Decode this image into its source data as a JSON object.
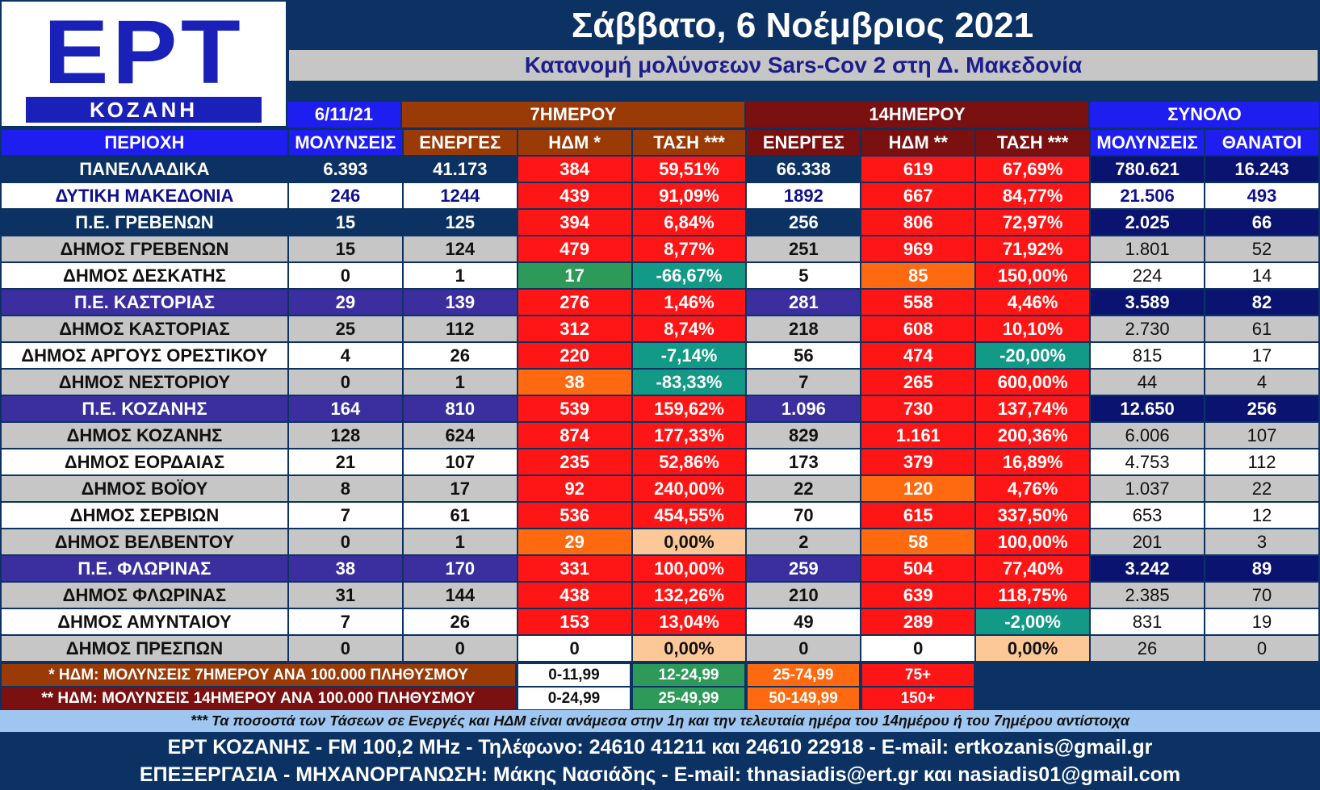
{
  "logo": {
    "brand": "ΕΡΤ",
    "station": "ΚΟΖΑΝΗ"
  },
  "title": "Σάββατο, 6 Νοέμβριος 2021",
  "subtitle": "Κατανομή μολύνσεων Sars-Cov 2 στη Δ. Μακεδονία",
  "header_groups": {
    "date": "6/11/21",
    "seven": "7ΗΜΕΡΟΥ",
    "fourteen": "14ΗΜΕΡΟΥ",
    "total": "ΣΥΝΟΛΟ"
  },
  "columns": [
    "ΠΕΡΙΟΧΗ",
    "ΜΟΛΥΝΣΕΙΣ",
    "ΕΝΕΡΓΕΣ",
    "ΗΔΜ *",
    "ΤΑΣΗ ***",
    "ΕΝΕΡΓΕΣ",
    "ΗΔΜ **",
    "ΤΑΣΗ ***",
    "ΜΟΛΥΝΣΕΙΣ",
    "ΘΑΝΑΤΟΙ"
  ],
  "colors": {
    "navy": "#0b3263",
    "white": "#ffffff",
    "grey": "#c6c6c6",
    "violet": "#3b2fa0",
    "dark_navy": "#0a1470",
    "red": "#fe1616",
    "orange": "#ff6a10",
    "green": "#2e9a5a",
    "teal": "#129a86",
    "peach": "#fcc898",
    "blue_text": "#10108c"
  },
  "rows": [
    {
      "kind": "total",
      "cells": [
        "ΠΑΝΕΛΛΑΔΙΚΑ",
        "6.393",
        "41.173",
        "384",
        "59,51%",
        "66.338",
        "619",
        "67,69%",
        "780.621",
        "16.243"
      ],
      "cls": [
        "navy",
        "navy",
        "navy",
        "red",
        "red",
        "navy",
        "red",
        "red",
        "dark_navy",
        "dark_navy"
      ]
    },
    {
      "kind": "region",
      "cells": [
        "ΔΥΤΙΚΗ ΜΑΚΕΔΟΝΙΑ",
        "246",
        "1244",
        "439",
        "91,09%",
        "1892",
        "667",
        "84,77%",
        "21.506",
        "493"
      ],
      "cls": [
        "white",
        "white",
        "white",
        "red",
        "red",
        "white",
        "red",
        "red",
        "white",
        "white"
      ]
    },
    {
      "kind": "pe",
      "cells": [
        "Π.Ε. ΓΡΕΒΕΝΩΝ",
        "15",
        "125",
        "394",
        "6,84%",
        "256",
        "806",
        "72,97%",
        "2.025",
        "66"
      ],
      "cls": [
        "navy",
        "navy",
        "navy",
        "red",
        "red",
        "navy",
        "red",
        "red",
        "dark_navy",
        "dark_navy"
      ]
    },
    {
      "kind": "dimos",
      "cells": [
        "ΔΗΜΟΣ ΓΡΕΒΕΝΩΝ",
        "15",
        "124",
        "479",
        "8,77%",
        "251",
        "969",
        "71,92%",
        "1.801",
        "52"
      ],
      "cls": [
        "grey",
        "grey",
        "grey",
        "red",
        "red",
        "grey",
        "red",
        "red",
        "grey",
        "grey"
      ]
    },
    {
      "kind": "dimos",
      "cells": [
        "ΔΗΜΟΣ ΔΕΣΚΑΤΗΣ",
        "0",
        "1",
        "17",
        "-66,67%",
        "5",
        "85",
        "150,00%",
        "224",
        "14"
      ],
      "cls": [
        "white",
        "white",
        "white",
        "green",
        "teal",
        "white",
        "orange",
        "red",
        "white",
        "white"
      ]
    },
    {
      "kind": "pe",
      "cells": [
        "Π.Ε. ΚΑΣΤΟΡΙΑΣ",
        "29",
        "139",
        "276",
        "1,46%",
        "281",
        "558",
        "4,46%",
        "3.589",
        "82"
      ],
      "cls": [
        "violet",
        "violet",
        "violet",
        "red",
        "red",
        "violet",
        "red",
        "red",
        "dark_navy",
        "dark_navy"
      ]
    },
    {
      "kind": "dimos",
      "cells": [
        "ΔΗΜΟΣ ΚΑΣΤΟΡΙΑΣ",
        "25",
        "112",
        "312",
        "8,74%",
        "218",
        "608",
        "10,10%",
        "2.730",
        "61"
      ],
      "cls": [
        "grey",
        "grey",
        "grey",
        "red",
        "red",
        "grey",
        "red",
        "red",
        "grey",
        "grey"
      ]
    },
    {
      "kind": "dimos",
      "cells": [
        "ΔΗΜΟΣ ΑΡΓΟΥΣ ΟΡΕΣΤΙΚΟΥ",
        "4",
        "26",
        "220",
        "-7,14%",
        "56",
        "474",
        "-20,00%",
        "815",
        "17"
      ],
      "cls": [
        "white",
        "white",
        "white",
        "red",
        "teal",
        "white",
        "red",
        "teal",
        "white",
        "white"
      ]
    },
    {
      "kind": "dimos",
      "cells": [
        "ΔΗΜΟΣ ΝΕΣΤΟΡΙΟΥ",
        "0",
        "1",
        "38",
        "-83,33%",
        "7",
        "265",
        "600,00%",
        "44",
        "4"
      ],
      "cls": [
        "grey",
        "grey",
        "grey",
        "orange",
        "teal",
        "grey",
        "red",
        "red",
        "grey",
        "grey"
      ]
    },
    {
      "kind": "pe",
      "cells": [
        "Π.Ε. ΚΟΖΑΝΗΣ",
        "164",
        "810",
        "539",
        "159,62%",
        "1.096",
        "730",
        "137,74%",
        "12.650",
        "256"
      ],
      "cls": [
        "violet",
        "violet",
        "violet",
        "red",
        "red",
        "violet",
        "red",
        "red",
        "dark_navy",
        "dark_navy"
      ]
    },
    {
      "kind": "dimos",
      "cells": [
        "ΔΗΜΟΣ ΚΟΖΑΝΗΣ",
        "128",
        "624",
        "874",
        "177,33%",
        "829",
        "1.161",
        "200,36%",
        "6.006",
        "107"
      ],
      "cls": [
        "grey",
        "grey",
        "grey",
        "red",
        "red",
        "grey",
        "red",
        "red",
        "grey",
        "grey"
      ]
    },
    {
      "kind": "dimos",
      "cells": [
        "ΔΗΜΟΣ ΕΟΡΔΑΙΑΣ",
        "21",
        "107",
        "235",
        "52,86%",
        "173",
        "379",
        "16,89%",
        "4.753",
        "112"
      ],
      "cls": [
        "white",
        "white",
        "white",
        "red",
        "red",
        "white",
        "red",
        "red",
        "white",
        "white"
      ]
    },
    {
      "kind": "dimos",
      "cells": [
        "ΔΗΜΟΣ ΒΟΪΟΥ",
        "8",
        "17",
        "92",
        "240,00%",
        "22",
        "120",
        "4,76%",
        "1.037",
        "22"
      ],
      "cls": [
        "grey",
        "grey",
        "grey",
        "red",
        "red",
        "grey",
        "orange",
        "red",
        "grey",
        "grey"
      ]
    },
    {
      "kind": "dimos",
      "cells": [
        "ΔΗΜΟΣ ΣΕΡΒΙΩΝ",
        "7",
        "61",
        "536",
        "454,55%",
        "70",
        "615",
        "337,50%",
        "653",
        "12"
      ],
      "cls": [
        "white",
        "white",
        "white",
        "red",
        "red",
        "white",
        "red",
        "red",
        "white",
        "white"
      ]
    },
    {
      "kind": "dimos",
      "cells": [
        "ΔΗΜΟΣ ΒΕΛΒΕΝΤΟΥ",
        "0",
        "1",
        "29",
        "0,00%",
        "2",
        "58",
        "100,00%",
        "201",
        "3"
      ],
      "cls": [
        "grey",
        "grey",
        "grey",
        "orange",
        "peach",
        "grey",
        "orange",
        "red",
        "grey",
        "grey"
      ]
    },
    {
      "kind": "pe",
      "cells": [
        "Π.Ε. ΦΛΩΡΙΝΑΣ",
        "38",
        "170",
        "331",
        "100,00%",
        "259",
        "504",
        "77,40%",
        "3.242",
        "89"
      ],
      "cls": [
        "violet",
        "violet",
        "violet",
        "red",
        "red",
        "violet",
        "red",
        "red",
        "dark_navy",
        "dark_navy"
      ]
    },
    {
      "kind": "dimos",
      "cells": [
        "ΔΗΜΟΣ ΦΛΩΡΙΝΑΣ",
        "31",
        "144",
        "438",
        "132,26%",
        "210",
        "639",
        "118,75%",
        "2.385",
        "70"
      ],
      "cls": [
        "grey",
        "grey",
        "grey",
        "red",
        "red",
        "grey",
        "red",
        "red",
        "grey",
        "grey"
      ]
    },
    {
      "kind": "dimos",
      "cells": [
        "ΔΗΜΟΣ ΑΜΥΝΤΑΙΟΥ",
        "7",
        "26",
        "153",
        "13,04%",
        "49",
        "289",
        "-2,00%",
        "831",
        "19"
      ],
      "cls": [
        "white",
        "white",
        "white",
        "red",
        "red",
        "white",
        "red",
        "teal",
        "white",
        "white"
      ]
    },
    {
      "kind": "dimos",
      "cells": [
        "ΔΗΜΟΣ ΠΡΕΣΠΩΝ",
        "0",
        "0",
        "0",
        "0,00%",
        "0",
        "0",
        "0,00%",
        "26",
        "0"
      ],
      "cls": [
        "grey",
        "grey",
        "grey",
        "white",
        "peach",
        "grey",
        "white",
        "peach",
        "grey",
        "grey"
      ]
    }
  ],
  "legend": {
    "seven_label": "* ΗΔΜ: ΜΟΛΥΝΣΕΙΣ 7ΗΜΕΡΟΥ ΑΝΑ 100.000 ΠΛΗΘΥΣΜΟΥ",
    "seven_ranges": [
      "0-11,99",
      "12-24,99",
      "25-74,99",
      "75+"
    ],
    "fourteen_label": "** ΗΔΜ: ΜΟΛΥΝΣΕΙΣ 14ΗΜΕΡΟΥ ΑΝΑ 100.000 ΠΛΗΘΥΣΜΟΥ",
    "fourteen_ranges": [
      "0-24,99",
      "25-49,99",
      "50-149,99",
      "150+"
    ]
  },
  "note": "*** Τα ποσοστά των Τάσεων σε Ενεργές και ΗΔΜ είναι ανάμεσα στην 1η και την τελευταία ημέρα του 14ημέρου ή του 7ημέρου αντίστοιχα",
  "footer": {
    "line1": "ΕΡΤ ΚΟΖΑΝΗΣ - FM 100,2 MHz - Τηλέφωνο:  24610 41211 και 24610 22918 - E-mail: ertkozanis@gmail.gr",
    "line2": "ΕΠΕΞΕΡΓΑΣΙΑ  -  ΜΗΧΑΝΟΡΓΑΝΩΣΗ: Μάκης Νασιάδης  -   E-mail: thnasiadis@ert.gr και nasiadis01@gmail.com"
  }
}
